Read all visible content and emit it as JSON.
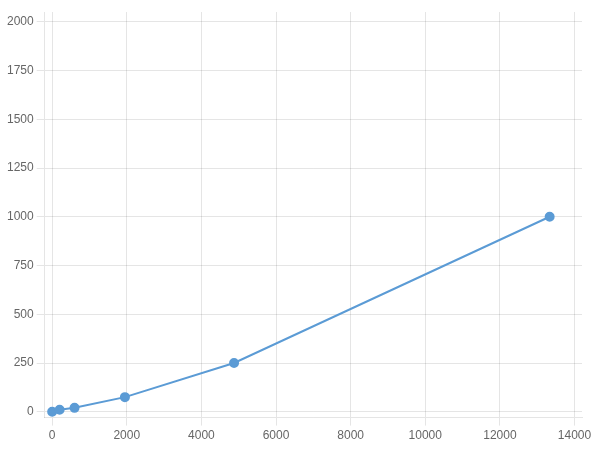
{
  "chart_data": {
    "type": "line",
    "x": [
      0,
      200,
      600,
      1950,
      4875,
      13333
    ],
    "values": [
      0,
      10,
      20,
      75,
      250,
      1000
    ],
    "color": "#5b9bd5",
    "marker": "circle",
    "xlim": [
      -200,
      14200
    ],
    "ylim": [
      -30,
      2050
    ],
    "xticks": [
      0,
      2000,
      4000,
      6000,
      8000,
      10000,
      12000,
      14000
    ],
    "yticks": [
      0,
      250,
      500,
      750,
      1000,
      1250,
      1500,
      1750,
      2000
    ],
    "grid": true
  }
}
